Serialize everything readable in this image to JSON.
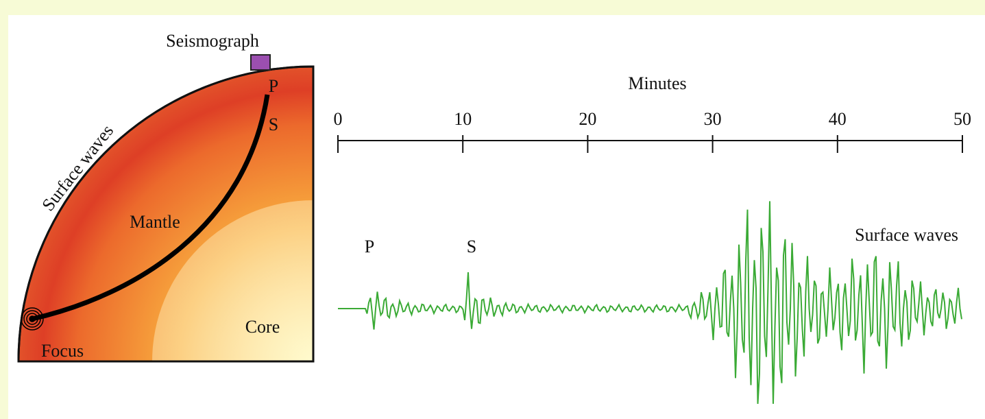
{
  "earth": {
    "seismograph": "Seismograph",
    "p": "P",
    "s": "S",
    "surface_waves": "Surface waves",
    "mantle": "Mantle",
    "core": "Core",
    "focus": "Focus"
  },
  "seismogram": {
    "axis_title": "Minutes",
    "xlim": [
      0,
      50
    ],
    "ticks": [
      0,
      10,
      20,
      30,
      40,
      50
    ],
    "p": "P",
    "s": "S",
    "surface_waves": "Surface waves"
  }
}
